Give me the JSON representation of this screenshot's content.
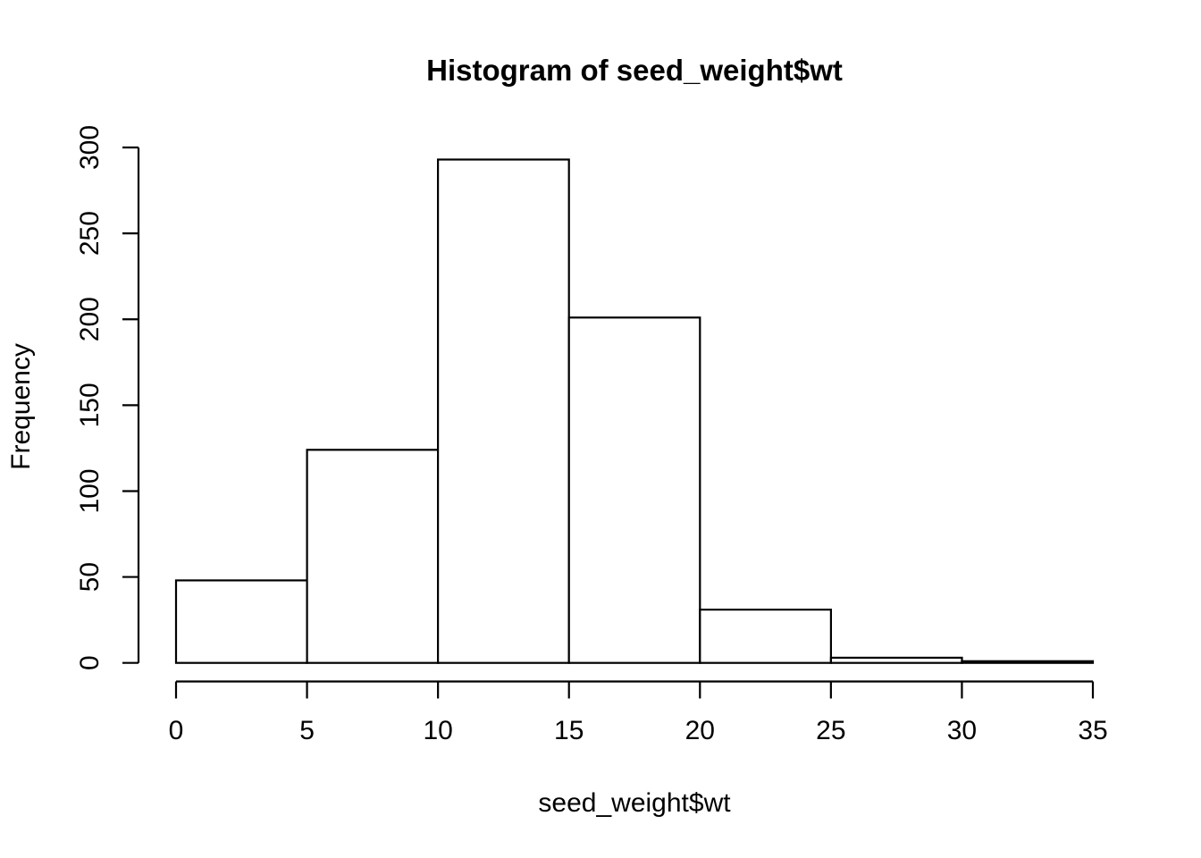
{
  "figure": {
    "background": "#ffffff"
  },
  "chart_data": {
    "type": "bar",
    "subtype": "histogram",
    "title": "Histogram of seed_weight$wt",
    "xlabel": "seed_weight$wt",
    "ylabel": "Frequency",
    "breaks": [
      0,
      5,
      10,
      15,
      20,
      25,
      30,
      35
    ],
    "counts": [
      48,
      124,
      293,
      201,
      31,
      3,
      1
    ],
    "x_ticks": [
      0,
      5,
      10,
      15,
      20,
      25,
      30,
      35
    ],
    "y_ticks": [
      0,
      50,
      100,
      150,
      200,
      250,
      300
    ],
    "xlim": [
      0,
      35
    ],
    "ylim": [
      0,
      300
    ],
    "grid": false,
    "legend": "none",
    "bar_fill": "#ffffff",
    "bar_stroke": "#000000",
    "axis_color": "#000000",
    "text_color": "#000000"
  }
}
